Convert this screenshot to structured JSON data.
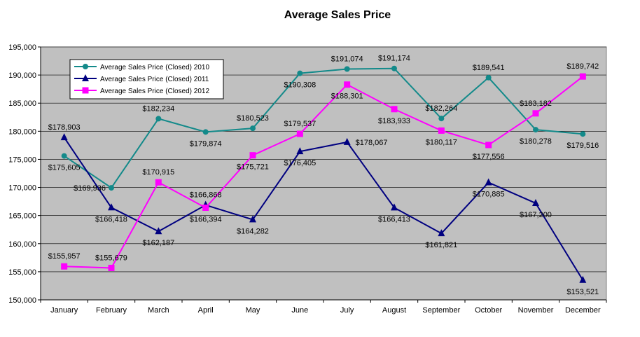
{
  "chart_data": {
    "type": "line",
    "title": "Average Sales Price",
    "xlabel": "",
    "ylabel": "",
    "ylim": [
      150000,
      195000
    ],
    "ytick_step": 5000,
    "ytick_labels": [
      "150,000",
      "155,000",
      "160,000",
      "165,000",
      "170,000",
      "175,000",
      "180,000",
      "185,000",
      "190,000",
      "195,000"
    ],
    "categories": [
      "January",
      "February",
      "March",
      "April",
      "May",
      "June",
      "July",
      "August",
      "September",
      "October",
      "November",
      "December"
    ],
    "grid": true,
    "legend_position": "top-left",
    "plot_background": "#c0c0c0",
    "series": [
      {
        "name": "Average Sales Price (Closed) 2010",
        "color": "#138a8a",
        "marker": "circle",
        "values": [
          175605,
          169936,
          182234,
          179874,
          180523,
          190308,
          191074,
          191174,
          182264,
          189541,
          180278,
          179516
        ],
        "labels": [
          "$175,605",
          "$169,936",
          "$182,234",
          "$179,874",
          "$180,523",
          "$190,308",
          "$191,074",
          "$191,174",
          "$182,264",
          "$189,541",
          "$180,278",
          "$179,516"
        ]
      },
      {
        "name": "Average Sales Price (Closed) 2011",
        "color": "#000080",
        "marker": "triangle",
        "values": [
          178903,
          166418,
          162187,
          166868,
          164282,
          176405,
          178067,
          166413,
          161821,
          170885,
          167200,
          153521
        ],
        "labels": [
          "$178,903",
          "$166,418",
          "$162,187",
          "$166,868",
          "$164,282",
          "$176,405",
          "$178,067",
          "$166,413",
          "$161,821",
          "$170,885",
          "$167,200",
          "$153,521"
        ]
      },
      {
        "name": "Average Sales Price (Closed) 2012",
        "color": "#ff00ff",
        "marker": "square",
        "values": [
          155957,
          155679,
          170915,
          166394,
          175721,
          179537,
          188301,
          183933,
          180117,
          177556,
          183182,
          189742
        ],
        "labels": [
          "$155,957",
          "$155,679",
          "$170,915",
          "$166,394",
          "$175,721",
          "$179,537",
          "$188,301",
          "$183,933",
          "$180,117",
          "$177,556",
          "$183,182",
          "$189,742"
        ]
      }
    ]
  }
}
